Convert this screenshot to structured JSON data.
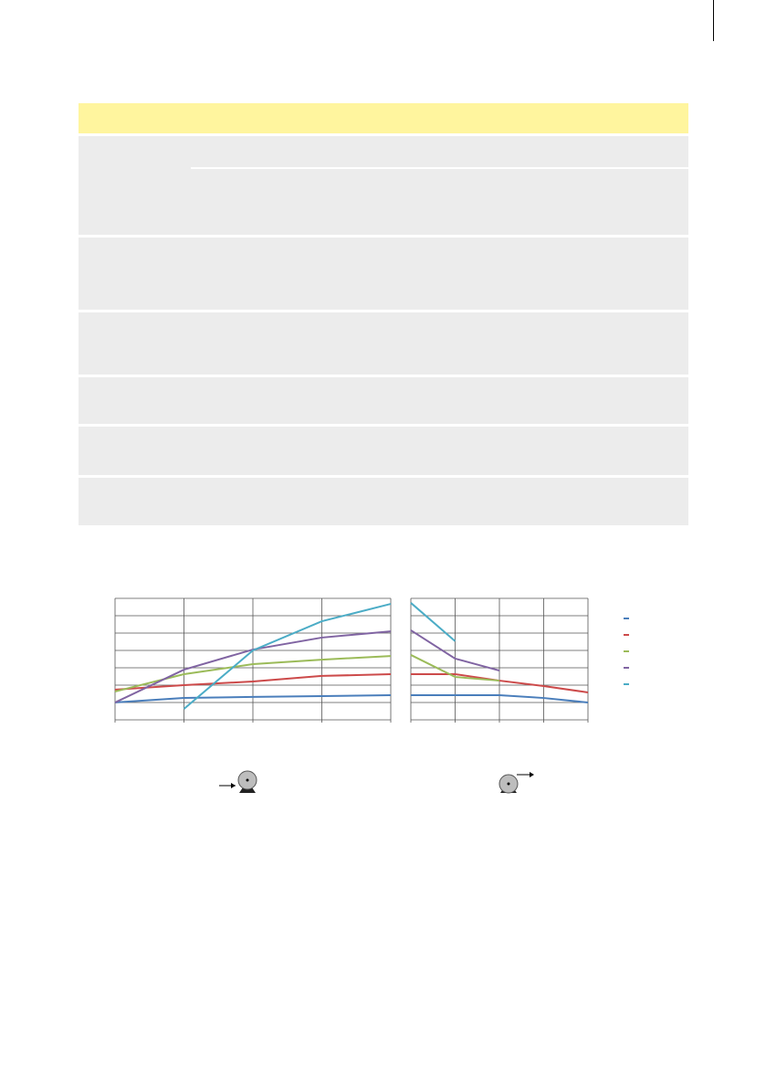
{
  "chart_data": [
    {
      "type": "line",
      "x": [
        0,
        1,
        2,
        3,
        4
      ],
      "xlim": [
        0,
        4
      ],
      "xticks": [
        0,
        1,
        2,
        3,
        4
      ],
      "ylim": [
        0,
        7
      ],
      "yticks": [
        0,
        1,
        2,
        3,
        4,
        5,
        6,
        7
      ],
      "grid": true,
      "series": [
        {
          "color": "#4a7ebb",
          "values": [
            1.0,
            1.26,
            1.32,
            1.37,
            1.42
          ]
        },
        {
          "color": "#cc4a4a",
          "values": [
            1.74,
            2.0,
            2.21,
            2.53,
            2.63
          ]
        },
        {
          "color": "#9bbb59",
          "values": [
            1.63,
            2.63,
            3.21,
            3.47,
            3.68
          ]
        },
        {
          "color": "#8064a2",
          "values": [
            1.0,
            2.89,
            4.05,
            4.74,
            5.1
          ]
        },
        {
          "color": "#4bacc6",
          "values": [
            null,
            0.63,
            4.0,
            5.68,
            6.68
          ]
        }
      ]
    },
    {
      "type": "line",
      "x": [
        0,
        1,
        2,
        3,
        4
      ],
      "xlim": [
        0,
        4
      ],
      "xticks": [
        0,
        1,
        2,
        3,
        4
      ],
      "ylim": [
        0,
        7
      ],
      "yticks": [
        0,
        1,
        2,
        3,
        4,
        5,
        6,
        7
      ],
      "grid": true,
      "series": [
        {
          "color": "#4a7ebb",
          "values": [
            1.42,
            1.42,
            1.42,
            1.26,
            1.0
          ]
        },
        {
          "color": "#cc4a4a",
          "values": [
            2.63,
            2.63,
            2.26,
            1.95,
            1.58
          ]
        },
        {
          "color": "#9bbb59",
          "values": [
            3.74,
            2.47,
            2.26,
            null,
            null
          ]
        },
        {
          "color": "#8064a2",
          "values": [
            5.16,
            3.53,
            2.84,
            null,
            null
          ]
        },
        {
          "color": "#4bacc6",
          "values": [
            6.74,
            4.53,
            null,
            null,
            null
          ]
        }
      ]
    }
  ]
}
